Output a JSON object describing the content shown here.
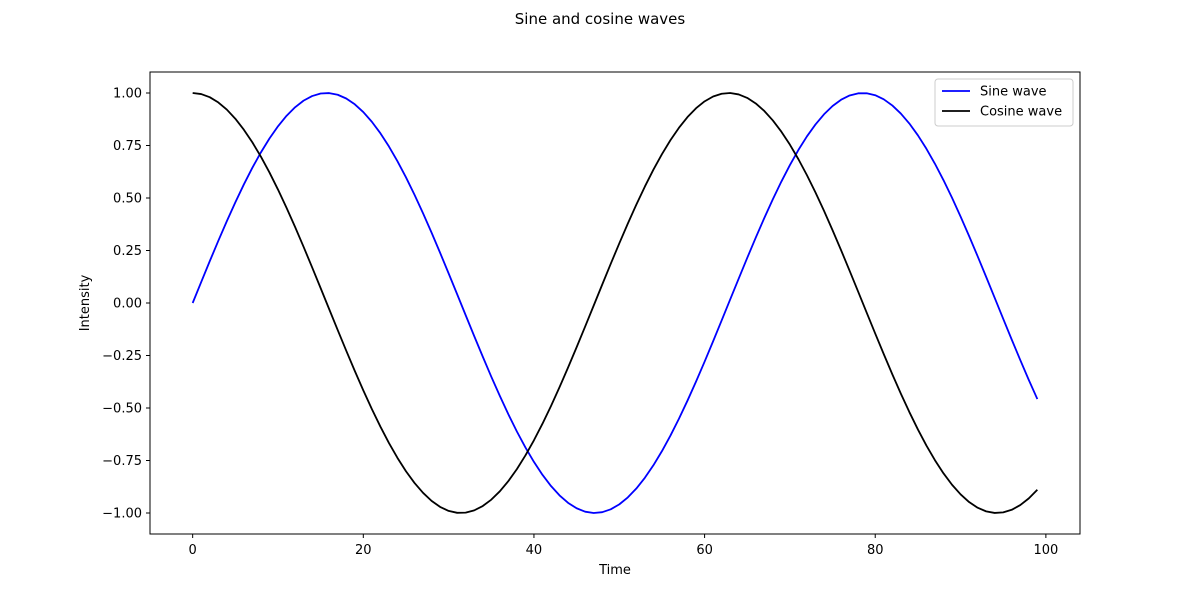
{
  "chart_data": {
    "type": "line",
    "title": "Sine and cosine waves",
    "xlabel": "Time",
    "ylabel": "Intensity",
    "xlim": [
      -5,
      104
    ],
    "ylim": [
      -1.1,
      1.1
    ],
    "xticks": [
      0,
      20,
      40,
      60,
      80,
      100
    ],
    "xtick_labels": [
      "0",
      "20",
      "40",
      "60",
      "80",
      "100"
    ],
    "yticks": [
      -1.0,
      -0.75,
      -0.5,
      -0.25,
      0.0,
      0.25,
      0.5,
      0.75,
      1.0
    ],
    "ytick_labels": [
      "−1.00",
      "−0.75",
      "−0.50",
      "−0.25",
      "0.00",
      "0.25",
      "0.50",
      "0.75",
      "1.00"
    ],
    "grid": false,
    "legend_position": "top-right",
    "x": [
      0,
      1,
      2,
      3,
      4,
      5,
      6,
      7,
      8,
      9,
      10,
      11,
      12,
      13,
      14,
      15,
      16,
      17,
      18,
      19,
      20,
      21,
      22,
      23,
      24,
      25,
      26,
      27,
      28,
      29,
      30,
      31,
      32,
      33,
      34,
      35,
      36,
      37,
      38,
      39,
      40,
      41,
      42,
      43,
      44,
      45,
      46,
      47,
      48,
      49,
      50,
      51,
      52,
      53,
      54,
      55,
      56,
      57,
      58,
      59,
      60,
      61,
      62,
      63,
      64,
      65,
      66,
      67,
      68,
      69,
      70,
      71,
      72,
      73,
      74,
      75,
      76,
      77,
      78,
      79,
      80,
      81,
      82,
      83,
      84,
      85,
      86,
      87,
      88,
      89,
      90,
      91,
      92,
      93,
      94,
      95,
      96,
      97,
      98,
      99
    ],
    "series": [
      {
        "name": "Sine wave",
        "color": "#0000ff",
        "values": [
          0.0,
          0.0998,
          0.1987,
          0.2955,
          0.3894,
          0.4794,
          0.5646,
          0.6442,
          0.7174,
          0.7833,
          0.8415,
          0.8912,
          0.932,
          0.9636,
          0.9854,
          0.9975,
          0.9996,
          0.9917,
          0.9738,
          0.9463,
          0.9093,
          0.8632,
          0.8085,
          0.7457,
          0.6755,
          0.5985,
          0.5155,
          0.4274,
          0.335,
          0.2392,
          0.1411,
          0.0416,
          -0.0584,
          -0.1577,
          -0.2555,
          -0.3508,
          -0.4425,
          -0.5298,
          -0.6119,
          -0.6878,
          -0.7568,
          -0.8183,
          -0.8716,
          -0.9162,
          -0.9516,
          -0.9775,
          -0.9937,
          -0.9999,
          -0.9962,
          -0.9825,
          -0.9589,
          -0.9258,
          -0.8835,
          -0.8323,
          -0.7728,
          -0.7055,
          -0.6313,
          -0.5507,
          -0.4646,
          -0.3739,
          -0.2794,
          -0.1822,
          -0.0831,
          0.0168,
          0.1165,
          0.2151,
          0.3115,
          0.4048,
          0.4941,
          0.5784,
          0.657,
          0.729,
          0.7937,
          0.8504,
          0.8987,
          0.938,
          0.9679,
          0.9882,
          0.9985,
          0.9989,
          0.9894,
          0.9699,
          0.9407,
          0.9022,
          0.8546,
          0.7985,
          0.7344,
          0.663,
          0.5849,
          0.501,
          0.4121,
          0.319,
          0.2229,
          0.1245,
          0.0248,
          -0.0752,
          -0.1743,
          -0.2718,
          -0.3665,
          -0.4575
        ]
      },
      {
        "name": "Cosine wave",
        "color": "#000000",
        "values": [
          1.0,
          0.995,
          0.9801,
          0.9553,
          0.9211,
          0.8776,
          0.8253,
          0.7648,
          0.6967,
          0.6216,
          0.5403,
          0.4536,
          0.3624,
          0.2675,
          0.17,
          0.0707,
          -0.0292,
          -0.1288,
          -0.2272,
          -0.3233,
          -0.4161,
          -0.5048,
          -0.5885,
          -0.6663,
          -0.7374,
          -0.8011,
          -0.8569,
          -0.904,
          -0.9422,
          -0.971,
          -0.99,
          -0.9991,
          -0.9983,
          -0.9875,
          -0.9668,
          -0.9365,
          -0.8968,
          -0.8481,
          -0.791,
          -0.7259,
          -0.6536,
          -0.5748,
          -0.4903,
          -0.4008,
          -0.3073,
          -0.2108,
          -0.1122,
          -0.0124,
          0.0875,
          0.1865,
          0.2837,
          0.378,
          0.4685,
          0.5544,
          0.6347,
          0.7087,
          0.7756,
          0.8347,
          0.8855,
          0.9275,
          0.9602,
          0.9833,
          0.9965,
          0.9999,
          0.9932,
          0.9766,
          0.9502,
          0.9144,
          0.8694,
          0.8157,
          0.7539,
          0.6845,
          0.6084,
          0.5261,
          0.4385,
          0.3466,
          0.2513,
          0.1534,
          0.054,
          -0.046,
          -0.1455,
          -0.2435,
          -0.3392,
          -0.4314,
          -0.5193,
          -0.602,
          -0.6787,
          -0.7486,
          -0.8111,
          -0.8654,
          -0.9111,
          -0.9477,
          -0.9748,
          -0.9922,
          -0.9997,
          -0.9972,
          -0.9847,
          -0.9624,
          -0.9304,
          -0.8892
        ]
      }
    ]
  }
}
